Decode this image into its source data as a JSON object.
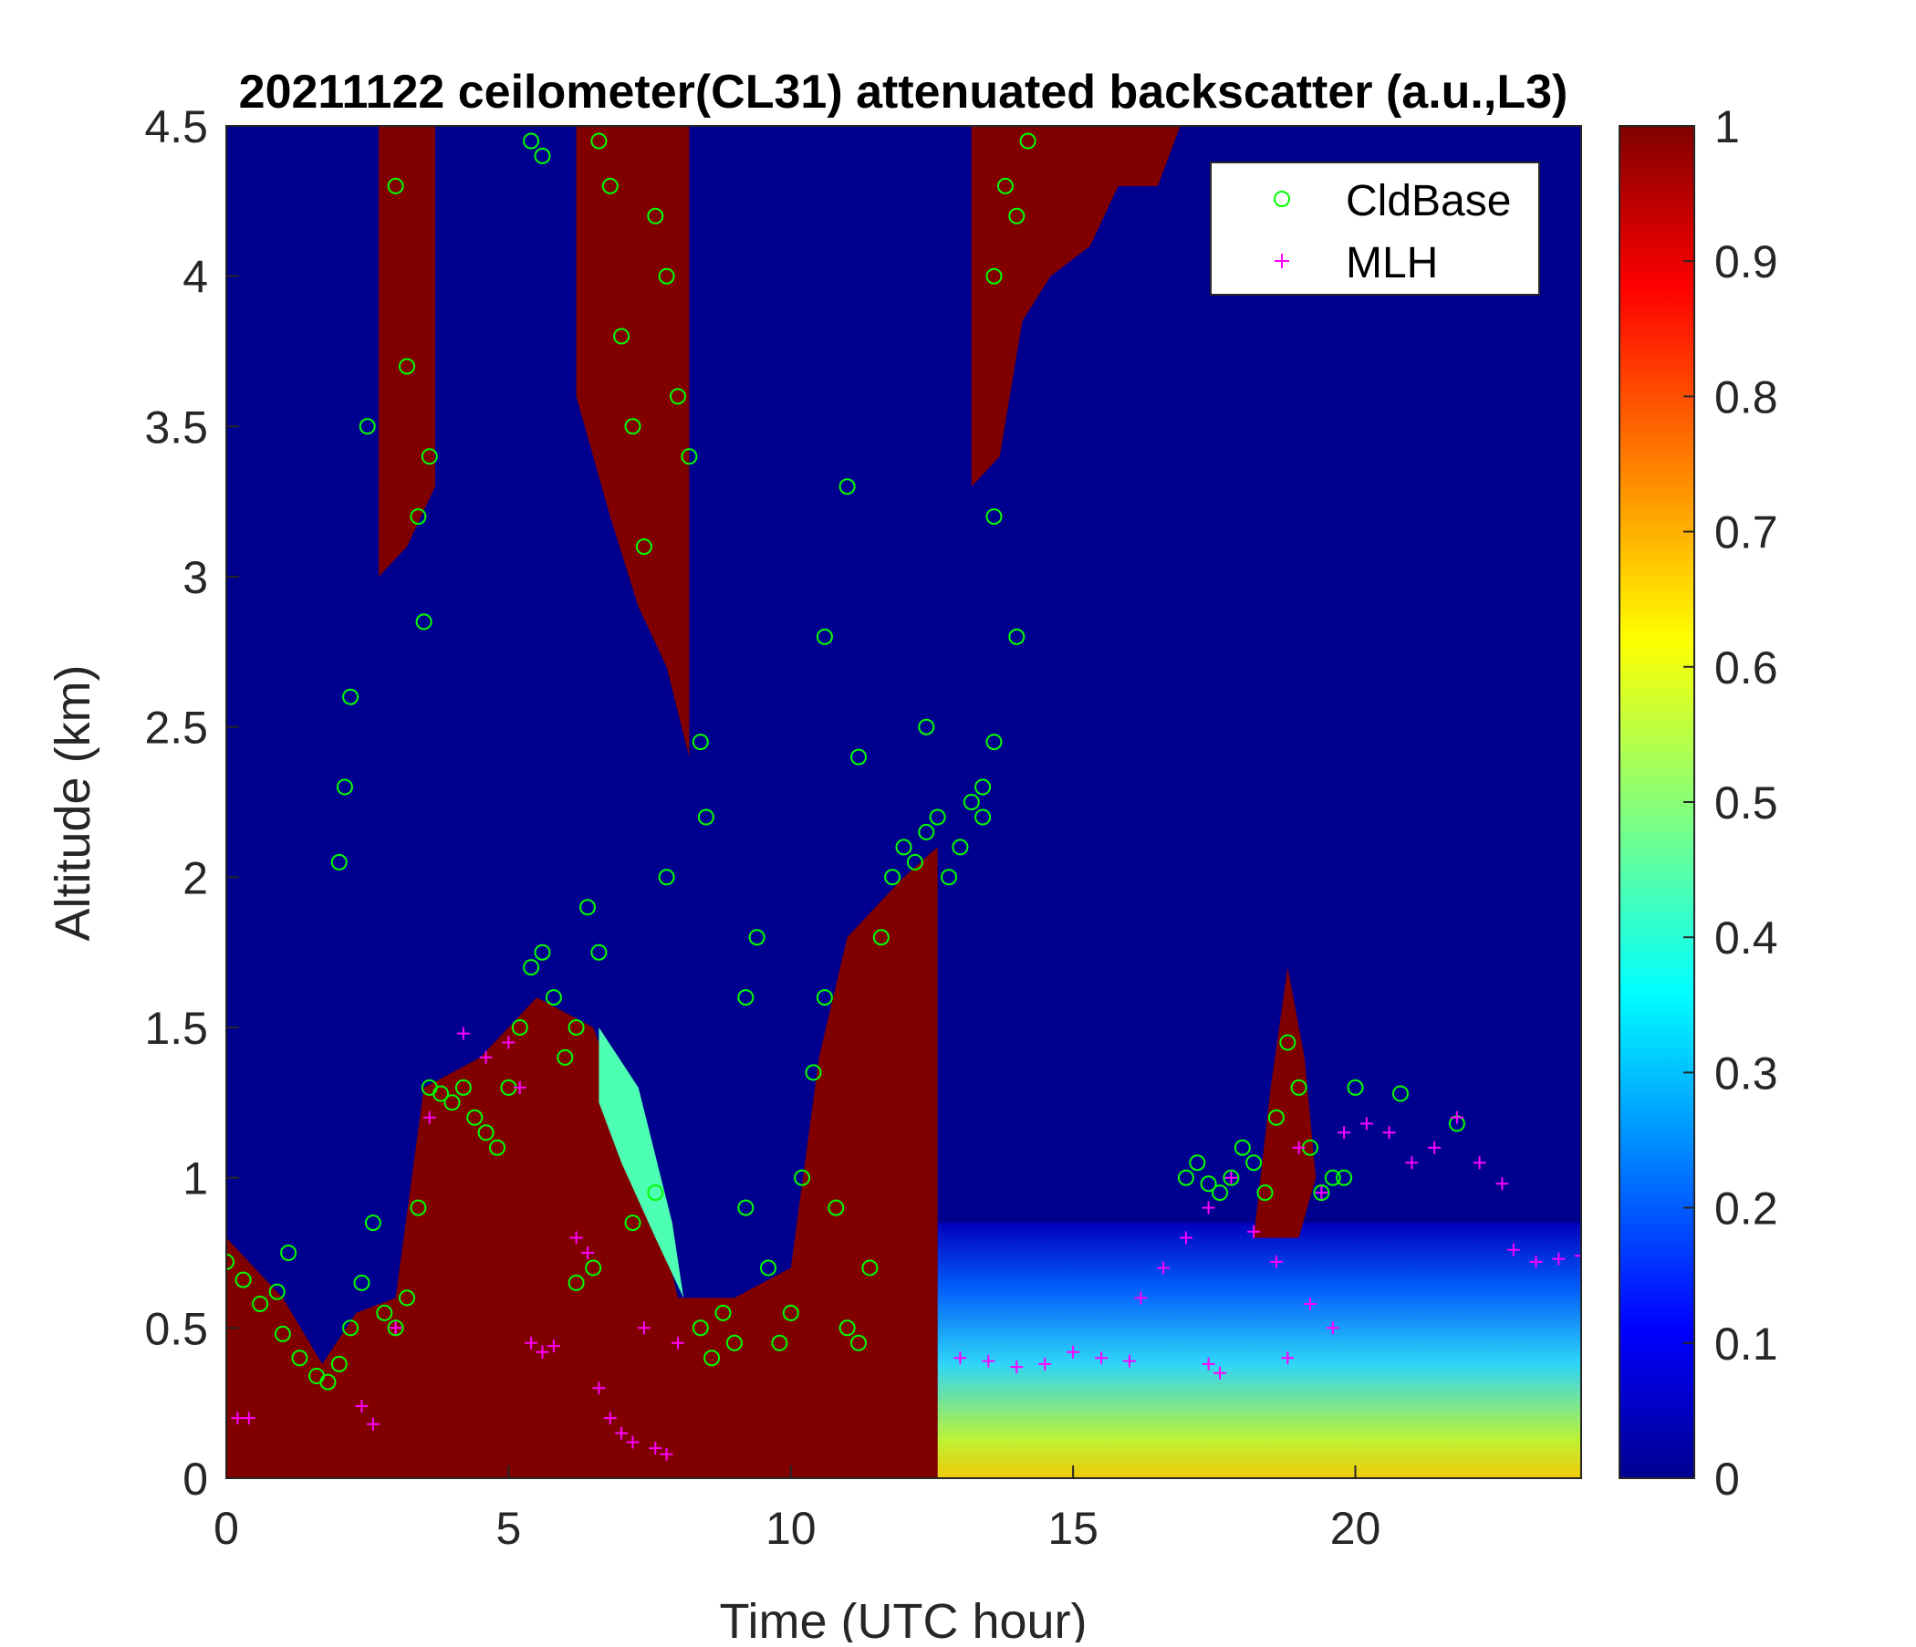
{
  "chart_data": {
    "type": "heatmap",
    "title": "20211122 ceilometer(CL31) attenuated backscatter (a.u.,L3)",
    "xlabel": "Time (UTC hour)",
    "ylabel": "Altitude (km)",
    "xlim": [
      0,
      24
    ],
    "ylim": [
      0,
      4.5
    ],
    "x_ticks": [
      0,
      5,
      10,
      15,
      20
    ],
    "x_tick_labels": [
      "0",
      "5",
      "10",
      "15",
      "20"
    ],
    "y_ticks": [
      0,
      0.5,
      1,
      1.5,
      2,
      2.5,
      3,
      3.5,
      4,
      4.5
    ],
    "y_tick_labels": [
      "0",
      "0.5",
      "1",
      "1.5",
      "2",
      "2.5",
      "3",
      "3.5",
      "4",
      "4.5"
    ],
    "colorbar": {
      "colormap": "jet",
      "range": [
        0,
        1
      ],
      "ticks": [
        0,
        0.1,
        0.2,
        0.3,
        0.4,
        0.5,
        0.6,
        0.7,
        0.8,
        0.9,
        1
      ],
      "tick_labels": [
        "0",
        "0.1",
        "0.2",
        "0.3",
        "0.4",
        "0.5",
        "0.6",
        "0.7",
        "0.8",
        "0.9",
        "1"
      ]
    },
    "legend": {
      "position": "top-right",
      "entries": [
        {
          "label": "CldBase",
          "marker": "circle",
          "color": "#00ff00"
        },
        {
          "label": "MLH",
          "marker": "plus",
          "color": "#ff00ff"
        }
      ]
    },
    "backscatter_regions": [
      {
        "description": "saturated",
        "value": 1.0,
        "polygon": [
          [
            0,
            0
          ],
          [
            0,
            0.8
          ],
          [
            1,
            0.6
          ],
          [
            1.7,
            0.38
          ],
          [
            2.3,
            0.55
          ],
          [
            3,
            0.6
          ],
          [
            3.5,
            1.3
          ],
          [
            4.5,
            1.4
          ],
          [
            5.5,
            1.6
          ],
          [
            6.5,
            1.5
          ],
          [
            7.5,
            1.0
          ],
          [
            8,
            0.6
          ],
          [
            9,
            0.6
          ],
          [
            10,
            0.7
          ],
          [
            10.5,
            1.4
          ],
          [
            11,
            1.8
          ],
          [
            12,
            2.0
          ],
          [
            12.6,
            2.1
          ],
          [
            12.6,
            0
          ]
        ]
      },
      {
        "description": "transition band",
        "value": 0.45,
        "polygon": [
          [
            6.6,
            1.5
          ],
          [
            7.3,
            1.3
          ],
          [
            7.9,
            0.85
          ],
          [
            8.1,
            0.6
          ],
          [
            7.6,
            0.8
          ],
          [
            7.0,
            1.05
          ],
          [
            6.6,
            1.25
          ]
        ]
      },
      {
        "description": "upper cloud 13-17h",
        "value": 1.0,
        "polygon": [
          [
            13.2,
            4.5
          ],
          [
            13.2,
            3.3
          ],
          [
            13.7,
            3.4
          ],
          [
            14.1,
            3.85
          ],
          [
            14.6,
            4.0
          ],
          [
            15.3,
            4.1
          ],
          [
            15.8,
            4.3
          ],
          [
            16.5,
            4.3
          ],
          [
            16.9,
            4.5
          ]
        ]
      },
      {
        "description": "cloud column 6.2-8.2h",
        "value": 1.0,
        "polygon": [
          [
            6.2,
            4.5
          ],
          [
            6.2,
            3.6
          ],
          [
            6.8,
            3.2
          ],
          [
            7.3,
            2.9
          ],
          [
            7.8,
            2.7
          ],
          [
            8.2,
            2.4
          ],
          [
            8.2,
            4.5
          ]
        ]
      },
      {
        "description": "cloud column 2.7-3.7h",
        "value": 1.0,
        "polygon": [
          [
            2.7,
            4.5
          ],
          [
            2.7,
            3.0
          ],
          [
            3.2,
            3.1
          ],
          [
            3.7,
            3.3
          ],
          [
            3.7,
            4.5
          ]
        ]
      },
      {
        "description": "cloud 18.5-19.5h",
        "value": 1.0,
        "polygon": [
          [
            18.2,
            0.8
          ],
          [
            18.5,
            1.3
          ],
          [
            18.8,
            1.7
          ],
          [
            19.1,
            1.4
          ],
          [
            19.3,
            1.0
          ],
          [
            19.0,
            0.8
          ]
        ]
      }
    ],
    "series": [
      {
        "name": "CldBase",
        "marker": "circle",
        "color": "#00ff00",
        "points": [
          [
            0,
            0.72
          ],
          [
            0.3,
            0.66
          ],
          [
            0.6,
            0.58
          ],
          [
            1.0,
            0.48
          ],
          [
            1.3,
            0.4
          ],
          [
            1.6,
            0.34
          ],
          [
            1.8,
            0.32
          ],
          [
            2.0,
            0.38
          ],
          [
            2.2,
            0.5
          ],
          [
            2.4,
            0.65
          ],
          [
            2.6,
            0.85
          ],
          [
            2.8,
            0.55
          ],
          [
            3.0,
            0.5
          ],
          [
            3.2,
            0.6
          ],
          [
            3.4,
            0.9
          ],
          [
            3.6,
            1.3
          ],
          [
            3.8,
            1.28
          ],
          [
            4.0,
            1.25
          ],
          [
            4.2,
            1.3
          ],
          [
            4.4,
            1.2
          ],
          [
            4.6,
            1.15
          ],
          [
            4.8,
            1.1
          ],
          [
            5.0,
            1.3
          ],
          [
            5.2,
            1.5
          ],
          [
            5.4,
            1.7
          ],
          [
            5.6,
            1.75
          ],
          [
            5.8,
            1.6
          ],
          [
            6.0,
            1.4
          ],
          [
            6.2,
            1.5
          ],
          [
            6.4,
            1.9
          ],
          [
            6.6,
            1.75
          ],
          [
            6.5,
            0.7
          ],
          [
            6.2,
            0.65
          ],
          [
            7.2,
            0.85
          ],
          [
            7.6,
            0.95
          ],
          [
            8.4,
            0.5
          ],
          [
            8.6,
            0.4
          ],
          [
            8.8,
            0.55
          ],
          [
            9.0,
            0.45
          ],
          [
            9.2,
            0.9
          ],
          [
            9.6,
            0.7
          ],
          [
            9.8,
            0.45
          ],
          [
            10.0,
            0.55
          ],
          [
            10.2,
            1.0
          ],
          [
            10.4,
            1.35
          ],
          [
            10.6,
            1.6
          ],
          [
            10.8,
            0.9
          ],
          [
            11.0,
            0.5
          ],
          [
            11.2,
            0.45
          ],
          [
            11.4,
            0.7
          ],
          [
            11.6,
            1.8
          ],
          [
            11.8,
            2.0
          ],
          [
            12.0,
            2.1
          ],
          [
            12.2,
            2.05
          ],
          [
            12.4,
            2.15
          ],
          [
            12.6,
            2.2
          ],
          [
            12.8,
            2.0
          ],
          [
            13.0,
            2.1
          ],
          [
            13.2,
            2.25
          ],
          [
            13.4,
            2.3
          ],
          [
            13.6,
            2.45
          ],
          [
            2.0,
            2.05
          ],
          [
            2.1,
            2.3
          ],
          [
            2.2,
            2.6
          ],
          [
            0.9,
            0.62
          ],
          [
            1.1,
            0.75
          ],
          [
            3.2,
            3.7
          ],
          [
            3.4,
            3.2
          ],
          [
            3.6,
            3.4
          ],
          [
            3.5,
            2.85
          ],
          [
            2.5,
            3.5
          ],
          [
            3.0,
            4.3
          ],
          [
            5.4,
            4.45
          ],
          [
            5.6,
            4.4
          ],
          [
            6.6,
            4.45
          ],
          [
            6.8,
            4.3
          ],
          [
            7.0,
            3.8
          ],
          [
            7.2,
            3.5
          ],
          [
            7.4,
            3.1
          ],
          [
            7.6,
            4.2
          ],
          [
            7.8,
            4.0
          ],
          [
            8.0,
            3.6
          ],
          [
            8.2,
            3.4
          ],
          [
            7.8,
            2.0
          ],
          [
            8.4,
            2.45
          ],
          [
            8.5,
            2.2
          ],
          [
            9.2,
            1.6
          ],
          [
            9.4,
            1.8
          ],
          [
            10.6,
            2.8
          ],
          [
            11.0,
            3.3
          ],
          [
            11.2,
            2.4
          ],
          [
            12.4,
            2.5
          ],
          [
            13.4,
            2.2
          ],
          [
            13.6,
            4.0
          ],
          [
            13.8,
            4.3
          ],
          [
            14.0,
            4.2
          ],
          [
            14.2,
            4.45
          ],
          [
            14.0,
            2.8
          ],
          [
            13.6,
            3.2
          ],
          [
            17.0,
            1.0
          ],
          [
            17.2,
            1.05
          ],
          [
            17.4,
            0.98
          ],
          [
            17.6,
            0.95
          ],
          [
            17.8,
            1.0
          ],
          [
            18.0,
            1.1
          ],
          [
            18.2,
            1.05
          ],
          [
            18.4,
            0.95
          ],
          [
            18.6,
            1.2
          ],
          [
            18.8,
            1.45
          ],
          [
            19.0,
            1.3
          ],
          [
            19.2,
            1.1
          ],
          [
            19.4,
            0.95
          ],
          [
            19.6,
            1.0
          ],
          [
            19.8,
            1.0
          ],
          [
            20.0,
            1.3
          ],
          [
            20.8,
            1.28
          ],
          [
            21.8,
            1.18
          ]
        ]
      },
      {
        "name": "MLH",
        "marker": "plus",
        "color": "#ff00ff",
        "points": [
          [
            0.2,
            0.2
          ],
          [
            0.4,
            0.2
          ],
          [
            2.4,
            0.24
          ],
          [
            2.6,
            0.18
          ],
          [
            3.0,
            0.5
          ],
          [
            3.6,
            1.2
          ],
          [
            4.2,
            1.48
          ],
          [
            4.6,
            1.4
          ],
          [
            5.0,
            1.45
          ],
          [
            5.2,
            1.3
          ],
          [
            5.4,
            0.45
          ],
          [
            5.6,
            0.42
          ],
          [
            5.8,
            0.44
          ],
          [
            6.2,
            0.8
          ],
          [
            6.4,
            0.75
          ],
          [
            6.6,
            0.3
          ],
          [
            6.8,
            0.2
          ],
          [
            7.0,
            0.15
          ],
          [
            7.2,
            0.12
          ],
          [
            7.4,
            0.5
          ],
          [
            7.6,
            0.1
          ],
          [
            7.8,
            0.08
          ],
          [
            8.0,
            0.45
          ],
          [
            13.0,
            0.4
          ],
          [
            13.5,
            0.39
          ],
          [
            14.0,
            0.37
          ],
          [
            14.5,
            0.38
          ],
          [
            15.0,
            0.42
          ],
          [
            15.5,
            0.4
          ],
          [
            16.0,
            0.39
          ],
          [
            16.2,
            0.6
          ],
          [
            16.6,
            0.7
          ],
          [
            17.0,
            0.8
          ],
          [
            17.4,
            0.9
          ],
          [
            17.8,
            1.0
          ],
          [
            18.2,
            0.82
          ],
          [
            18.6,
            0.72
          ],
          [
            19.0,
            1.1
          ],
          [
            19.4,
            0.95
          ],
          [
            19.8,
            1.15
          ],
          [
            20.2,
            1.18
          ],
          [
            20.6,
            1.15
          ],
          [
            21.0,
            1.05
          ],
          [
            21.4,
            1.1
          ],
          [
            21.8,
            1.2
          ],
          [
            22.2,
            1.05
          ],
          [
            22.6,
            0.98
          ],
          [
            22.8,
            0.76
          ],
          [
            23.2,
            0.72
          ],
          [
            23.6,
            0.73
          ],
          [
            24.0,
            0.74
          ],
          [
            17.4,
            0.38
          ],
          [
            17.6,
            0.35
          ],
          [
            18.8,
            0.4
          ],
          [
            19.2,
            0.58
          ],
          [
            19.6,
            0.5
          ]
        ]
      }
    ]
  }
}
